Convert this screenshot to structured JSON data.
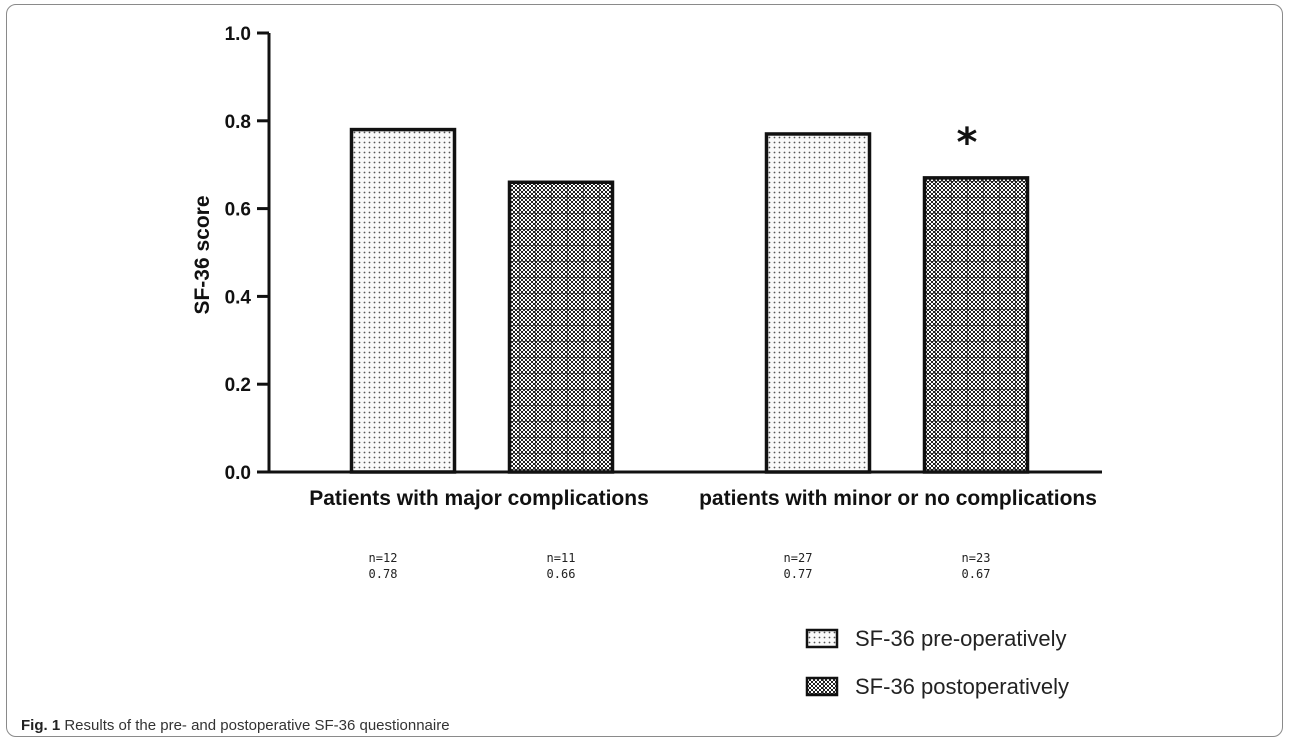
{
  "caption": {
    "label": "Fig. 1",
    "text": "Results of the pre- and postoperative SF-36 questionnaire"
  },
  "chart_data": {
    "type": "bar",
    "ylabel": "SF-36 score",
    "xlabel": "",
    "ylim": [
      0,
      1.0
    ],
    "yticks": [
      "0.0",
      "0.2",
      "0.4",
      "0.6",
      "0.8",
      "1.0"
    ],
    "categories": [
      "Patients with major complications",
      "patients with minor or no complications"
    ],
    "series": [
      {
        "name": "SF-36 pre-operatively",
        "values": [
          0.78,
          0.77
        ],
        "pattern": "dots",
        "fill": "#f4f4f4"
      },
      {
        "name": "SF-36 postoperatively",
        "values": [
          0.66,
          0.67
        ],
        "pattern": "grid",
        "fill": "#3a3a3a"
      }
    ],
    "bar_notes": [
      [
        "n=12",
        "0.78"
      ],
      [
        "n=11",
        "0.66"
      ],
      [
        "n=27",
        "0.77"
      ],
      [
        "n=23",
        "0.67"
      ]
    ],
    "annotations": [
      {
        "text": "*",
        "category": 1,
        "series": 1
      }
    ],
    "legend_position": "bottom-right",
    "grid": false
  }
}
